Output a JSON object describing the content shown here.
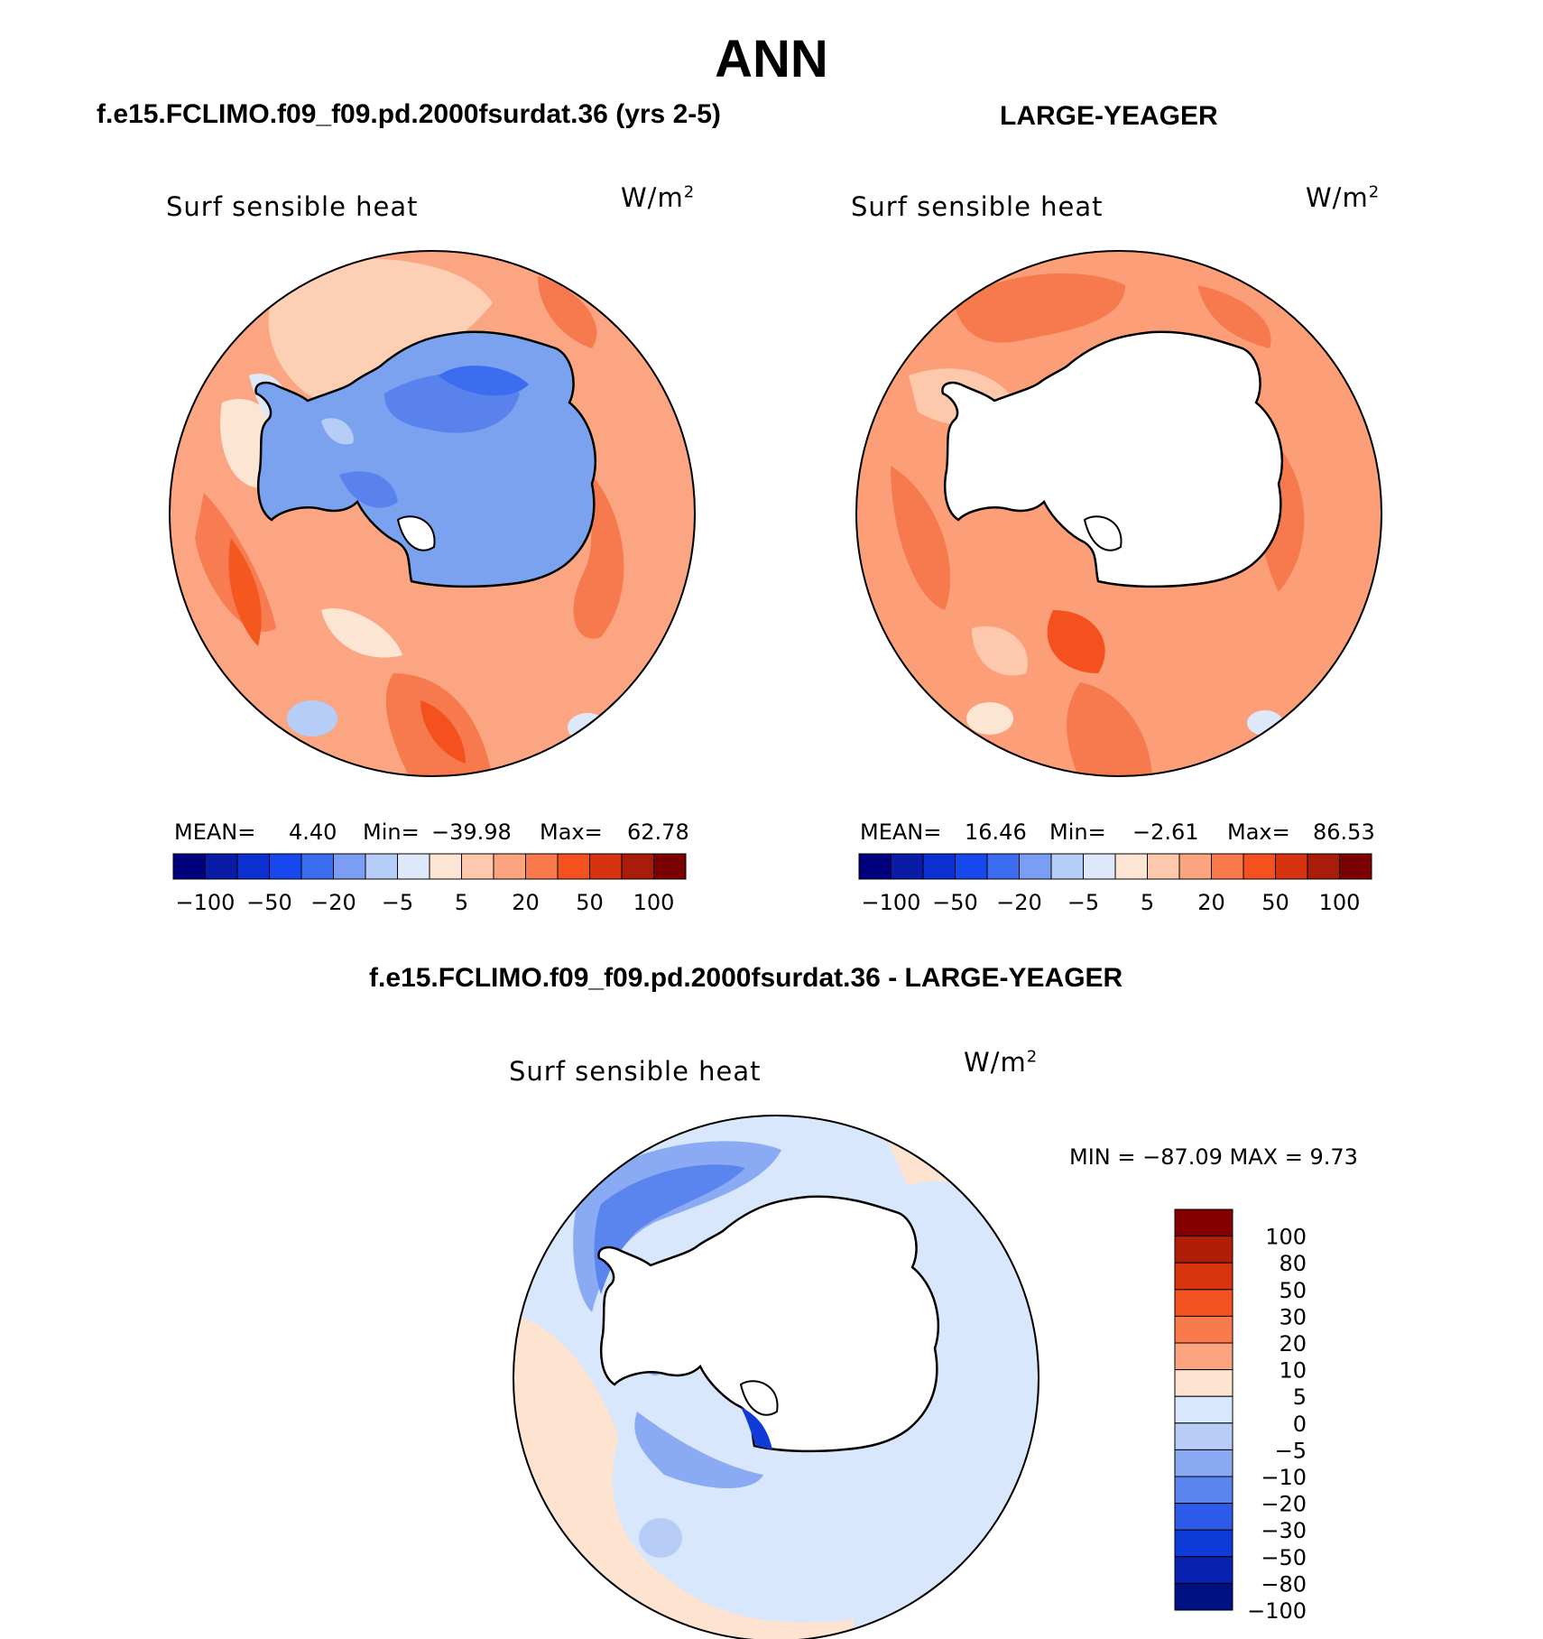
{
  "main_title": "ANN",
  "panels": [
    {
      "case_title": "f.e15.FCLIMO.f09_f09.pd.2000fsurdat.36 (yrs 2-5)",
      "var_label": "Surf sensible heat",
      "units_base": "W/m",
      "units_exp": "2",
      "mean_label": "MEAN=",
      "mean_value": "4.40",
      "min_label": "Min=",
      "min_value": "−39.98",
      "max_label": "Max=",
      "max_value": "62.78",
      "ice_sheet_color": "#7aa2ee"
    },
    {
      "case_title": "LARGE-YEAGER",
      "var_label": "Surf sensible heat",
      "units_base": "W/m",
      "units_exp": "2",
      "mean_label": "MEAN=",
      "mean_value": "16.46",
      "min_label": "Min=",
      "min_value": "−2.61",
      "max_label": "Max=",
      "max_value": "86.53",
      "ice_sheet_color": "#ffffff"
    }
  ],
  "top_colorbar": {
    "colors": [
      "#00007f",
      "#0a1ba6",
      "#0b32d0",
      "#1748ee",
      "#3c6cf0",
      "#7b9df4",
      "#b6cdf8",
      "#dde9fb",
      "#fde5d4",
      "#fdc8ab",
      "#fca37f",
      "#fa7a4e",
      "#f4511e",
      "#d6320f",
      "#a81c09",
      "#7b0000"
    ],
    "labels": [
      "−100",
      "−50",
      "−20",
      "−5",
      "5",
      "20",
      "50",
      "100"
    ]
  },
  "diff": {
    "title": "f.e15.FCLIMO.f09_f09.pd.2000fsurdat.36 - LARGE-YEAGER",
    "var_label": "Surf sensible heat",
    "units_base": "W/m",
    "units_exp": "2",
    "minmax_text": "MIN = −87.09 MAX =    9.73",
    "colorbar": {
      "colors": [
        "#840000",
        "#b01e08",
        "#d8350e",
        "#f4531f",
        "#f97b4c",
        "#fba47f",
        "#fde3d0",
        "#d8e7fb",
        "#b7cdf8",
        "#8aabf4",
        "#5a85ef",
        "#2d5ae8",
        "#0f3cd8",
        "#0a22b0",
        "#001184"
      ],
      "labels": [
        "100",
        "80",
        "50",
        "30",
        "20",
        "10",
        "5",
        "0",
        "−5",
        "−10",
        "−20",
        "−30",
        "−50",
        "−80",
        "−100"
      ]
    }
  }
}
